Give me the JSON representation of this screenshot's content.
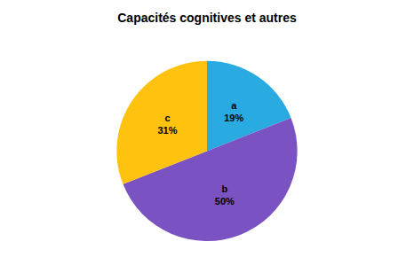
{
  "chart_data": {
    "type": "pie",
    "title": "Capacités cognitives et autres",
    "categories": [
      "a",
      "b",
      "c"
    ],
    "values": [
      19,
      50,
      31
    ],
    "value_labels": [
      "a\n19%",
      "b\n50%",
      "c\n31%"
    ],
    "colors": [
      "#29ABE2",
      "#7B52C1",
      "#FFC20E"
    ],
    "data_labels": true
  }
}
